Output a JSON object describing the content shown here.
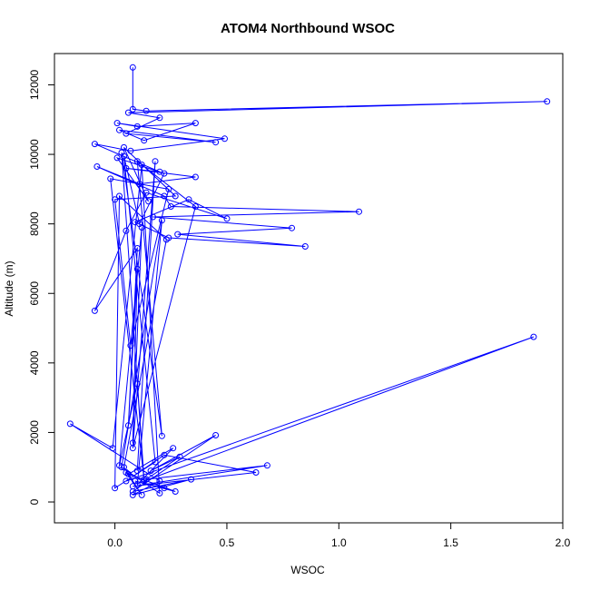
{
  "chart_data": {
    "type": "line",
    "title": "ATOM4 Northbound WSOC",
    "xlabel": "WSOC",
    "ylabel": "Altitude (m)",
    "xlim": [
      -0.27,
      2.0
    ],
    "ylim": [
      -600,
      12900
    ],
    "x_ticks": [
      0.0,
      0.5,
      1.0,
      1.5,
      2.0
    ],
    "x_tick_labels": [
      "0.0",
      "0.5",
      "1.0",
      "1.5",
      "2.0"
    ],
    "y_ticks": [
      0,
      2000,
      4000,
      6000,
      8000,
      10000,
      12000
    ],
    "y_tick_labels": [
      "0",
      "2000",
      "4000",
      "6000",
      "8000",
      "10000",
      "12000"
    ],
    "grid": false,
    "marker": "open-circle",
    "series": [
      {
        "color": "#0000ff",
        "points": [
          [
            0.08,
            12500
          ],
          [
            0.08,
            11300
          ],
          [
            0.14,
            11250
          ],
          [
            1.93,
            11520
          ],
          [
            0.06,
            11200
          ],
          [
            0.2,
            11050
          ],
          [
            0.05,
            10600
          ],
          [
            0.45,
            10350
          ],
          [
            0.02,
            10700
          ],
          [
            0.13,
            10400
          ],
          [
            0.36,
            10900
          ],
          [
            0.1,
            10800
          ],
          [
            0.01,
            10900
          ],
          [
            0.49,
            10450
          ],
          [
            0.07,
            10100
          ],
          [
            -0.09,
            10300
          ],
          [
            0.2,
            9500
          ],
          [
            0.05,
            9600
          ],
          [
            0.36,
            9350
          ],
          [
            0.11,
            9150
          ],
          [
            -0.08,
            9650
          ],
          [
            0.22,
            8800
          ],
          [
            0.25,
            8500
          ],
          [
            1.09,
            8350
          ],
          [
            0.17,
            8200
          ],
          [
            0.79,
            7880
          ],
          [
            0.28,
            7700
          ],
          [
            0.85,
            7350
          ],
          [
            0.24,
            7600
          ],
          [
            0.09,
            8050
          ],
          [
            0.33,
            8700
          ],
          [
            0.5,
            8150
          ],
          [
            0.14,
            8900
          ],
          [
            0.05,
            7800
          ],
          [
            -0.09,
            5500
          ],
          [
            0.1,
            7300
          ],
          [
            0.06,
            2200
          ],
          [
            0.1,
            6700
          ],
          [
            0.08,
            1700
          ],
          [
            0.12,
            7900
          ],
          [
            0.02,
            1050
          ],
          [
            0.1,
            3400
          ],
          [
            0.13,
            600
          ],
          [
            1.87,
            4750
          ],
          [
            0.05,
            600
          ],
          [
            0.22,
            1350
          ],
          [
            0.63,
            850
          ],
          [
            0.08,
            450
          ],
          [
            0.68,
            1050
          ],
          [
            0.14,
            650
          ],
          [
            0.29,
            1300
          ],
          [
            0.16,
            900
          ],
          [
            0.45,
            1920
          ],
          [
            0.08,
            300
          ],
          [
            0.34,
            650
          ],
          [
            0.08,
            200
          ],
          [
            0.2,
            600
          ],
          [
            -0.2,
            2250
          ],
          [
            -0.01,
            1550
          ],
          [
            0.12,
            9700
          ],
          [
            0.2,
            250
          ],
          [
            0.03,
            1000
          ],
          [
            0.21,
            8100
          ],
          [
            0.1,
            500
          ],
          [
            0.26,
            1550
          ],
          [
            0.06,
            800
          ],
          [
            0.27,
            300
          ],
          [
            0.09,
            600
          ],
          [
            0.22,
            400
          ],
          [
            0.05,
            850
          ],
          [
            0.12,
            200
          ],
          [
            0.04,
            1000
          ],
          [
            0.23,
            7550
          ],
          [
            0.02,
            8800
          ],
          [
            0.0,
            400
          ],
          [
            0.18,
            1150
          ],
          [
            0.04,
            9950
          ],
          [
            0.11,
            8000
          ],
          [
            0.22,
            9450
          ],
          [
            0.01,
            9900
          ],
          [
            0.15,
            8650
          ],
          [
            0.04,
            10200
          ],
          [
            0.27,
            8800
          ],
          [
            0.0,
            8700
          ],
          [
            0.07,
            4500
          ],
          [
            0.24,
            9000
          ],
          [
            -0.02,
            9300
          ],
          [
            0.13,
            650
          ],
          [
            0.03,
            10050
          ],
          [
            0.21,
            1900
          ],
          [
            0.1,
            9800
          ],
          [
            0.36,
            8500
          ],
          [
            0.08,
            1550
          ],
          [
            0.18,
            9800
          ],
          [
            0.1,
            900
          ]
        ]
      }
    ]
  }
}
